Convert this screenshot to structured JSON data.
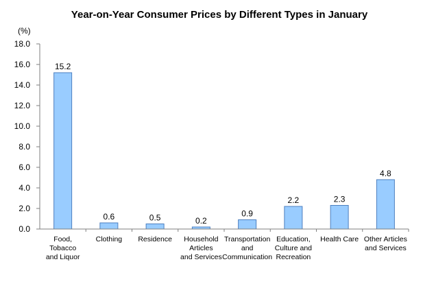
{
  "chart_data": {
    "type": "bar",
    "title": "Year-on-Year Consumer Prices by Different Types in January",
    "unit_label": "(%)",
    "ylim": [
      0,
      18
    ],
    "ytick_step": 2,
    "ytick_labels": [
      "0.0",
      "2.0",
      "4.0",
      "6.0",
      "8.0",
      "10.0",
      "12.0",
      "14.0",
      "16.0",
      "18.0"
    ],
    "grid": false,
    "legend": "none",
    "categories": [
      [
        "Food,",
        "Tobacco",
        "and Liquor"
      ],
      [
        "Clothing"
      ],
      [
        "Residence"
      ],
      [
        "Household",
        "Articles",
        "and Services"
      ],
      [
        "Transportation",
        "and",
        "Communication"
      ],
      [
        "Education,",
        "Culture and",
        "Recreation"
      ],
      [
        "Health Care"
      ],
      [
        "Other Articles",
        "and Services"
      ]
    ],
    "values": [
      15.2,
      0.6,
      0.5,
      0.2,
      0.9,
      2.2,
      2.3,
      4.8
    ],
    "value_labels": [
      "15.2",
      "0.6",
      "0.5",
      "0.2",
      "0.9",
      "2.2",
      "2.3",
      "4.8"
    ],
    "colors": {
      "bar_fill": "#99ccff",
      "bar_stroke": "#4d7fbf",
      "axis": "#7f7f7f"
    }
  }
}
